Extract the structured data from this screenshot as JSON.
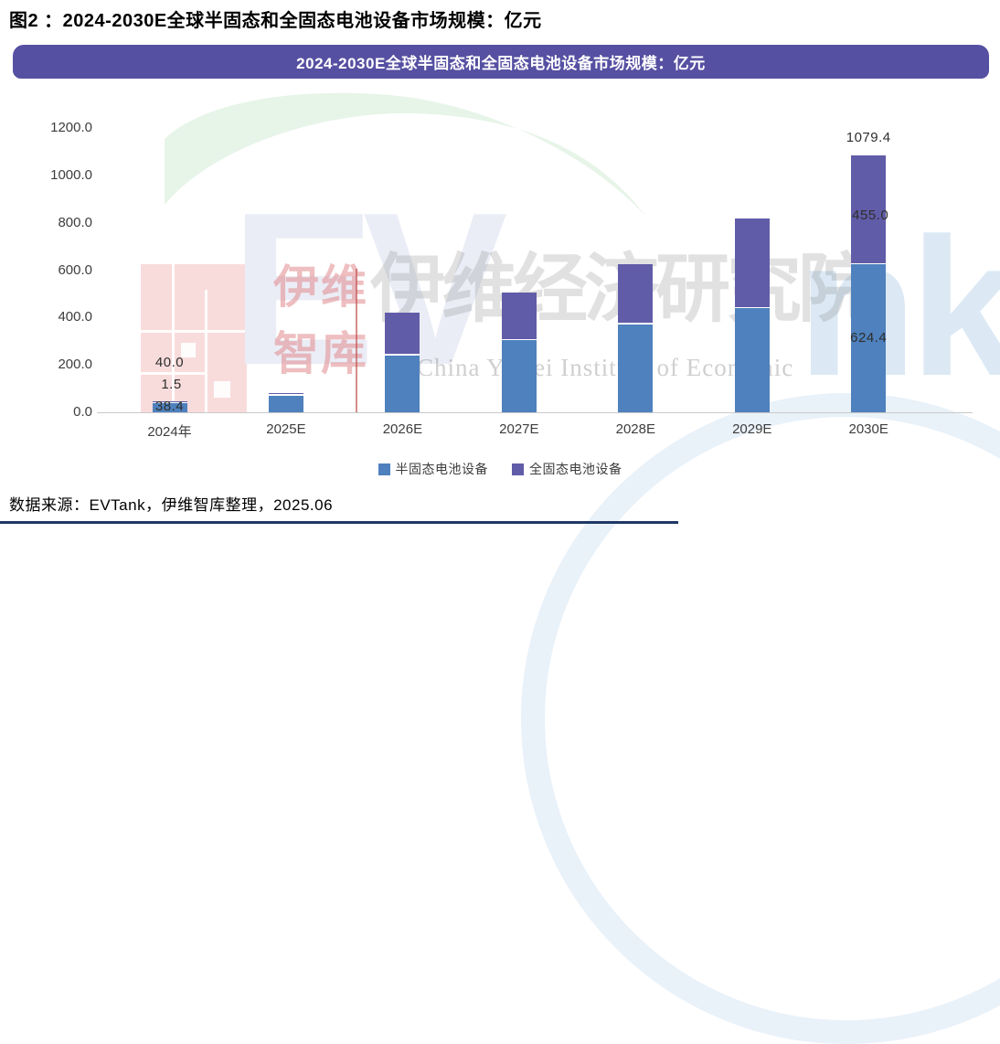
{
  "figure_label": "图2 ：2024-2030E全球半固态和全固态电池设备市场规模：亿元",
  "banner_title": "2024-2030E全球半固态和全固态电池设备市场规模：亿元",
  "source_line": "数据来源：EVTank，伊维智库整理，2025.06",
  "watermark": {
    "big_letters_left": "EV",
    "big_letters_right": "nk",
    "cn_small_top": "伊维",
    "cn_small_bottom": "智库",
    "cn_large": "伊维经济研究院",
    "en_line": "China YiWei Institute of Economic",
    "leaf_color": "#e7f4e8",
    "qr_square_color": "#f8dcdc"
  },
  "chart_data": {
    "type": "bar",
    "stacked": true,
    "title": "2024-2030E全球半固态和全固态电池设备市场规模：亿元",
    "unit": "亿元",
    "categories": [
      "2024年",
      "2025E",
      "2026E",
      "2027E",
      "2028E",
      "2029E",
      "2030E"
    ],
    "series": [
      {
        "name": "半固态电池设备",
        "color": "#4e81bd",
        "values": [
          38.4,
          70,
          240,
          304,
          371,
          438,
          624.4
        ]
      },
      {
        "name": "全固态电池设备",
        "color": "#615ca8",
        "values": [
          1.5,
          5,
          173,
          196,
          249,
          376,
          455.0
        ]
      }
    ],
    "totals": [
      40.0,
      75,
      413,
      500,
      620,
      814,
      1079.4
    ],
    "bar_labels": [
      {
        "category": 0,
        "total": "40.0",
        "top_segment": "1.5",
        "bottom_segment": "38.4"
      },
      {
        "category": 6,
        "total": "1079.4",
        "top_segment": "455.0",
        "bottom_segment": "624.4"
      }
    ],
    "yticks": [
      "0.0",
      "200.0",
      "400.0",
      "600.0",
      "800.0",
      "1000.0",
      "1200.0"
    ],
    "ylim": [
      0,
      1200
    ],
    "grid": false,
    "legend_position": "bottom"
  }
}
